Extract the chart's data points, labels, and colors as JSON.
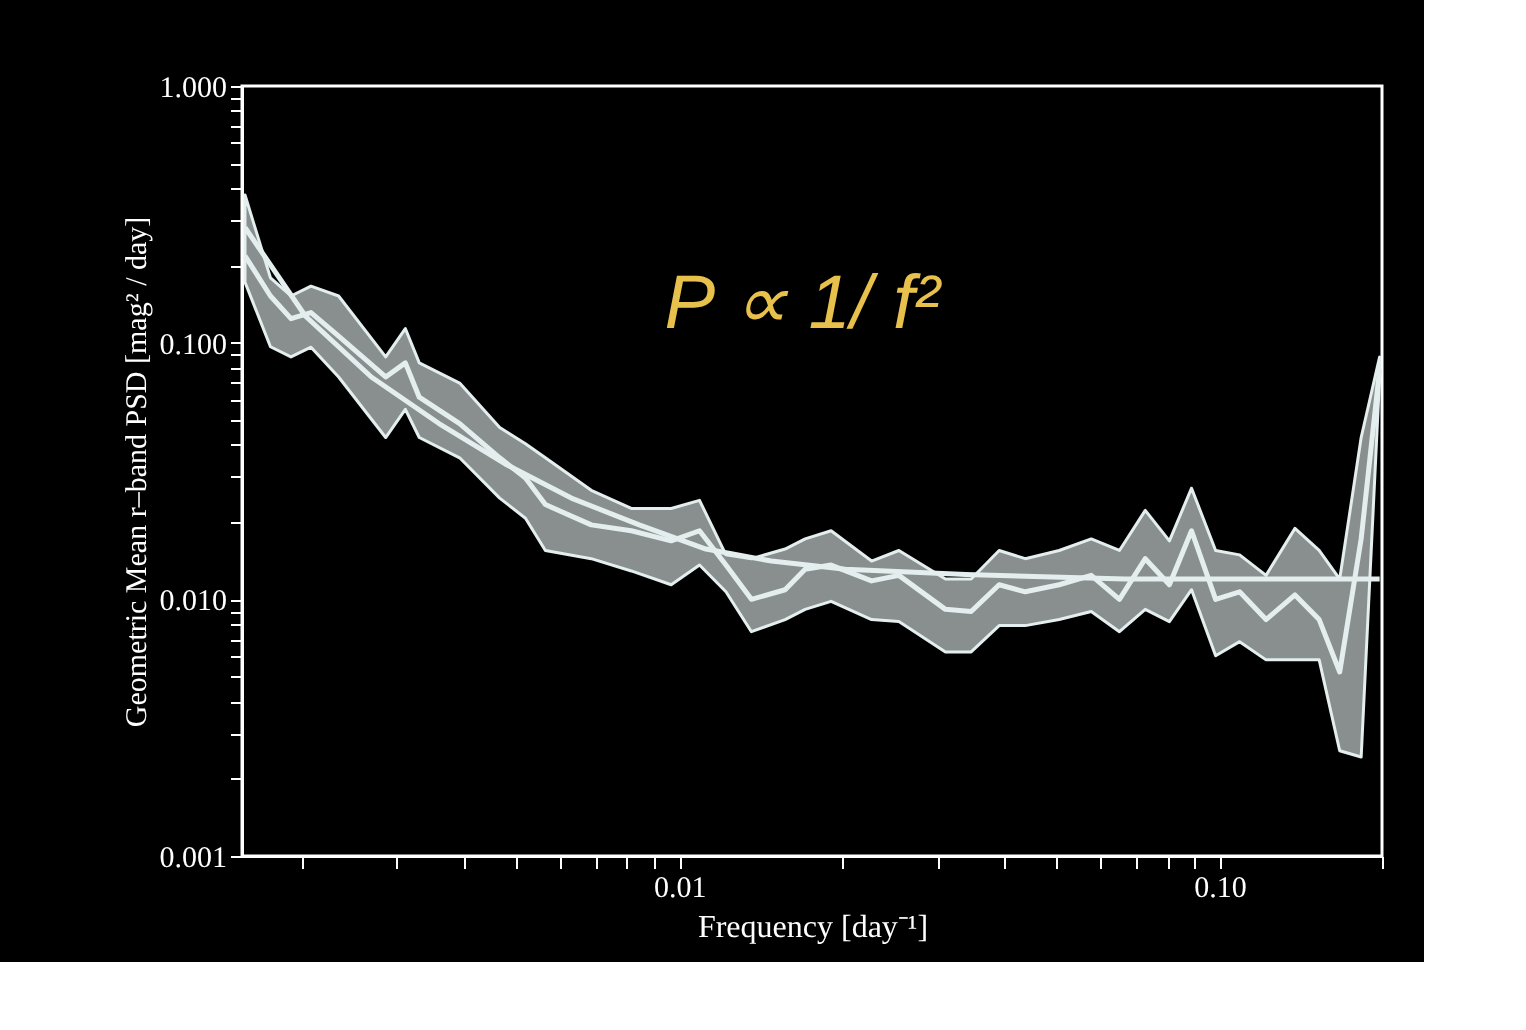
{
  "chart_data": {
    "type": "line",
    "xlabel": "Frequency [day⁻¹]",
    "ylabel": "Geometric Mean r–band PSD [mag² / day]",
    "annotations": [
      "P ∝ 1/ f²"
    ],
    "log": "xy",
    "grid": false,
    "marker": "none",
    "line_style": "solid",
    "xlim": [
      0.00155,
      0.2
    ],
    "ylim": [
      0.001,
      1
    ],
    "xticks": [
      {
        "value": 0.002,
        "label": null
      },
      {
        "value": 0.003,
        "label": null
      },
      {
        "value": 0.004,
        "label": null
      },
      {
        "value": 0.005,
        "label": null
      },
      {
        "value": 0.006,
        "label": null
      },
      {
        "value": 0.007,
        "label": null
      },
      {
        "value": 0.008,
        "label": null
      },
      {
        "value": 0.009,
        "label": null
      },
      {
        "value": 0.01,
        "label": "0.01"
      },
      {
        "value": 0.02,
        "label": null
      },
      {
        "value": 0.03,
        "label": null
      },
      {
        "value": 0.04,
        "label": null
      },
      {
        "value": 0.05,
        "label": null
      },
      {
        "value": 0.06,
        "label": null
      },
      {
        "value": 0.07,
        "label": null
      },
      {
        "value": 0.08,
        "label": null
      },
      {
        "value": 0.09,
        "label": null
      },
      {
        "value": 0.1,
        "label": "0.10"
      },
      {
        "value": 0.2,
        "label": null
      }
    ],
    "yticks": [
      {
        "value": 0.001,
        "label": "0.001"
      },
      {
        "value": 0.002,
        "label": null
      },
      {
        "value": 0.003,
        "label": null
      },
      {
        "value": 0.004,
        "label": null
      },
      {
        "value": 0.005,
        "label": null
      },
      {
        "value": 0.006,
        "label": null
      },
      {
        "value": 0.007,
        "label": null
      },
      {
        "value": 0.008,
        "label": null
      },
      {
        "value": 0.009,
        "label": null
      },
      {
        "value": 0.01,
        "label": "0.010"
      },
      {
        "value": 0.02,
        "label": null
      },
      {
        "value": 0.03,
        "label": null
      },
      {
        "value": 0.04,
        "label": null
      },
      {
        "value": 0.05,
        "label": null
      },
      {
        "value": 0.06,
        "label": null
      },
      {
        "value": 0.07,
        "label": null
      },
      {
        "value": 0.08,
        "label": null
      },
      {
        "value": 0.09,
        "label": null
      },
      {
        "value": 0.1,
        "label": "0.100"
      },
      {
        "value": 0.2,
        "label": null
      },
      {
        "value": 0.3,
        "label": null
      },
      {
        "value": 0.4,
        "label": null
      },
      {
        "value": 0.5,
        "label": null
      },
      {
        "value": 0.6,
        "label": null
      },
      {
        "value": 0.7,
        "label": null
      },
      {
        "value": 0.8,
        "label": null
      },
      {
        "value": 0.9,
        "label": null
      },
      {
        "value": 1,
        "label": "1.000"
      }
    ],
    "series": [
      {
        "color": "#e4eeee",
        "x": [
          0.00157,
          0.00175,
          0.00191,
          0.00208,
          0.00234,
          0.00286,
          0.00311,
          0.0033,
          0.00392,
          0.00465,
          0.00519,
          0.00565,
          0.00687,
          0.00815,
          0.00966,
          0.0109,
          0.0122,
          0.0136,
          0.0157,
          0.0171,
          0.0191,
          0.0227,
          0.0255,
          0.0311,
          0.0347,
          0.0391,
          0.0437,
          0.0505,
          0.0579,
          0.0653,
          0.0729,
          0.0808,
          0.0888,
          0.0984,
          0.109,
          0.122,
          0.138,
          0.153,
          0.167,
          0.183,
          0.198
        ],
        "values": [
          0.218,
          0.152,
          0.124,
          0.131,
          0.106,
          0.0735,
          0.0834,
          0.0613,
          0.0484,
          0.0356,
          0.0297,
          0.0234,
          0.0195,
          0.0185,
          0.0169,
          0.0185,
          0.0136,
          0.01,
          0.0109,
          0.0131,
          0.0136,
          0.0118,
          0.0124,
          0.00914,
          0.00897,
          0.0114,
          0.0107,
          0.0114,
          0.0124,
          0.01,
          0.0144,
          0.0114,
          0.0185,
          0.01,
          0.0107,
          0.00834,
          0.0104,
          0.00834,
          0.00521,
          0.0172,
          0.079
        ],
        "lower": [
          0.172,
          0.0964,
          0.088,
          0.096,
          0.0735,
          0.0427,
          0.055,
          0.0427,
          0.0356,
          0.0248,
          0.0207,
          0.0155,
          0.0144,
          0.0129,
          0.0114,
          0.0136,
          0.0107,
          0.00748,
          0.00834,
          0.00914,
          0.00982,
          0.00834,
          0.00819,
          0.00624,
          0.00624,
          0.0079,
          0.0079,
          0.00834,
          0.00897,
          0.00748,
          0.00914,
          0.00819,
          0.0109,
          0.00603,
          0.00684,
          0.00581,
          0.00581,
          0.00581,
          0.00257,
          0.00243,
          0.0735
        ],
        "upper": [
          0.376,
          0.179,
          0.152,
          0.166,
          0.152,
          0.088,
          0.1135,
          0.0834,
          0.0696,
          0.0467,
          0.0404,
          0.0356,
          0.0266,
          0.0226,
          0.0226,
          0.0243,
          0.0149,
          0.0144,
          0.0157,
          0.0172,
          0.0185,
          0.0141,
          0.0155,
          0.012,
          0.012,
          0.0155,
          0.0144,
          0.0155,
          0.0172,
          0.0155,
          0.0222,
          0.0169,
          0.0271,
          0.0155,
          0.0149,
          0.0124,
          0.0189,
          0.0155,
          0.012,
          0.0427,
          0.088
        ]
      },
      {
        "color": "#e4eeee",
        "x": [
          0.00157,
          0.00203,
          0.00269,
          0.00359,
          0.00476,
          0.00631,
          0.00843,
          0.0112,
          0.0148,
          0.0203,
          0.0339,
          0.0669,
          0.198
        ],
        "values": [
          0.281,
          0.127,
          0.0735,
          0.0484,
          0.0337,
          0.0248,
          0.0195,
          0.0157,
          0.0141,
          0.0131,
          0.0125,
          0.012,
          0.012
        ]
      }
    ]
  }
}
